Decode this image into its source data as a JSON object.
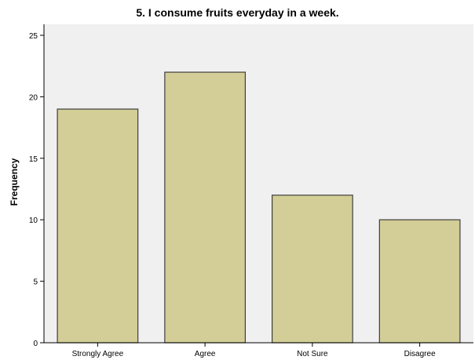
{
  "chart_data": {
    "type": "bar",
    "title": "5. I consume fruits everyday in a week.",
    "xlabel": "",
    "ylabel": "Frequency",
    "categories": [
      "Strongly Agree",
      "Agree",
      "Not Sure",
      "Disagree"
    ],
    "values": [
      19,
      22,
      12,
      10
    ],
    "ylim": [
      0,
      25
    ],
    "yticks": [
      0,
      5,
      10,
      15,
      20,
      25
    ],
    "grid": false,
    "legend": "none",
    "colors": {
      "bar_fill": "#d3cd97",
      "bar_stroke": "#3f3f3f",
      "plot_background": "#f0f0f0",
      "axis": "#000000"
    }
  }
}
